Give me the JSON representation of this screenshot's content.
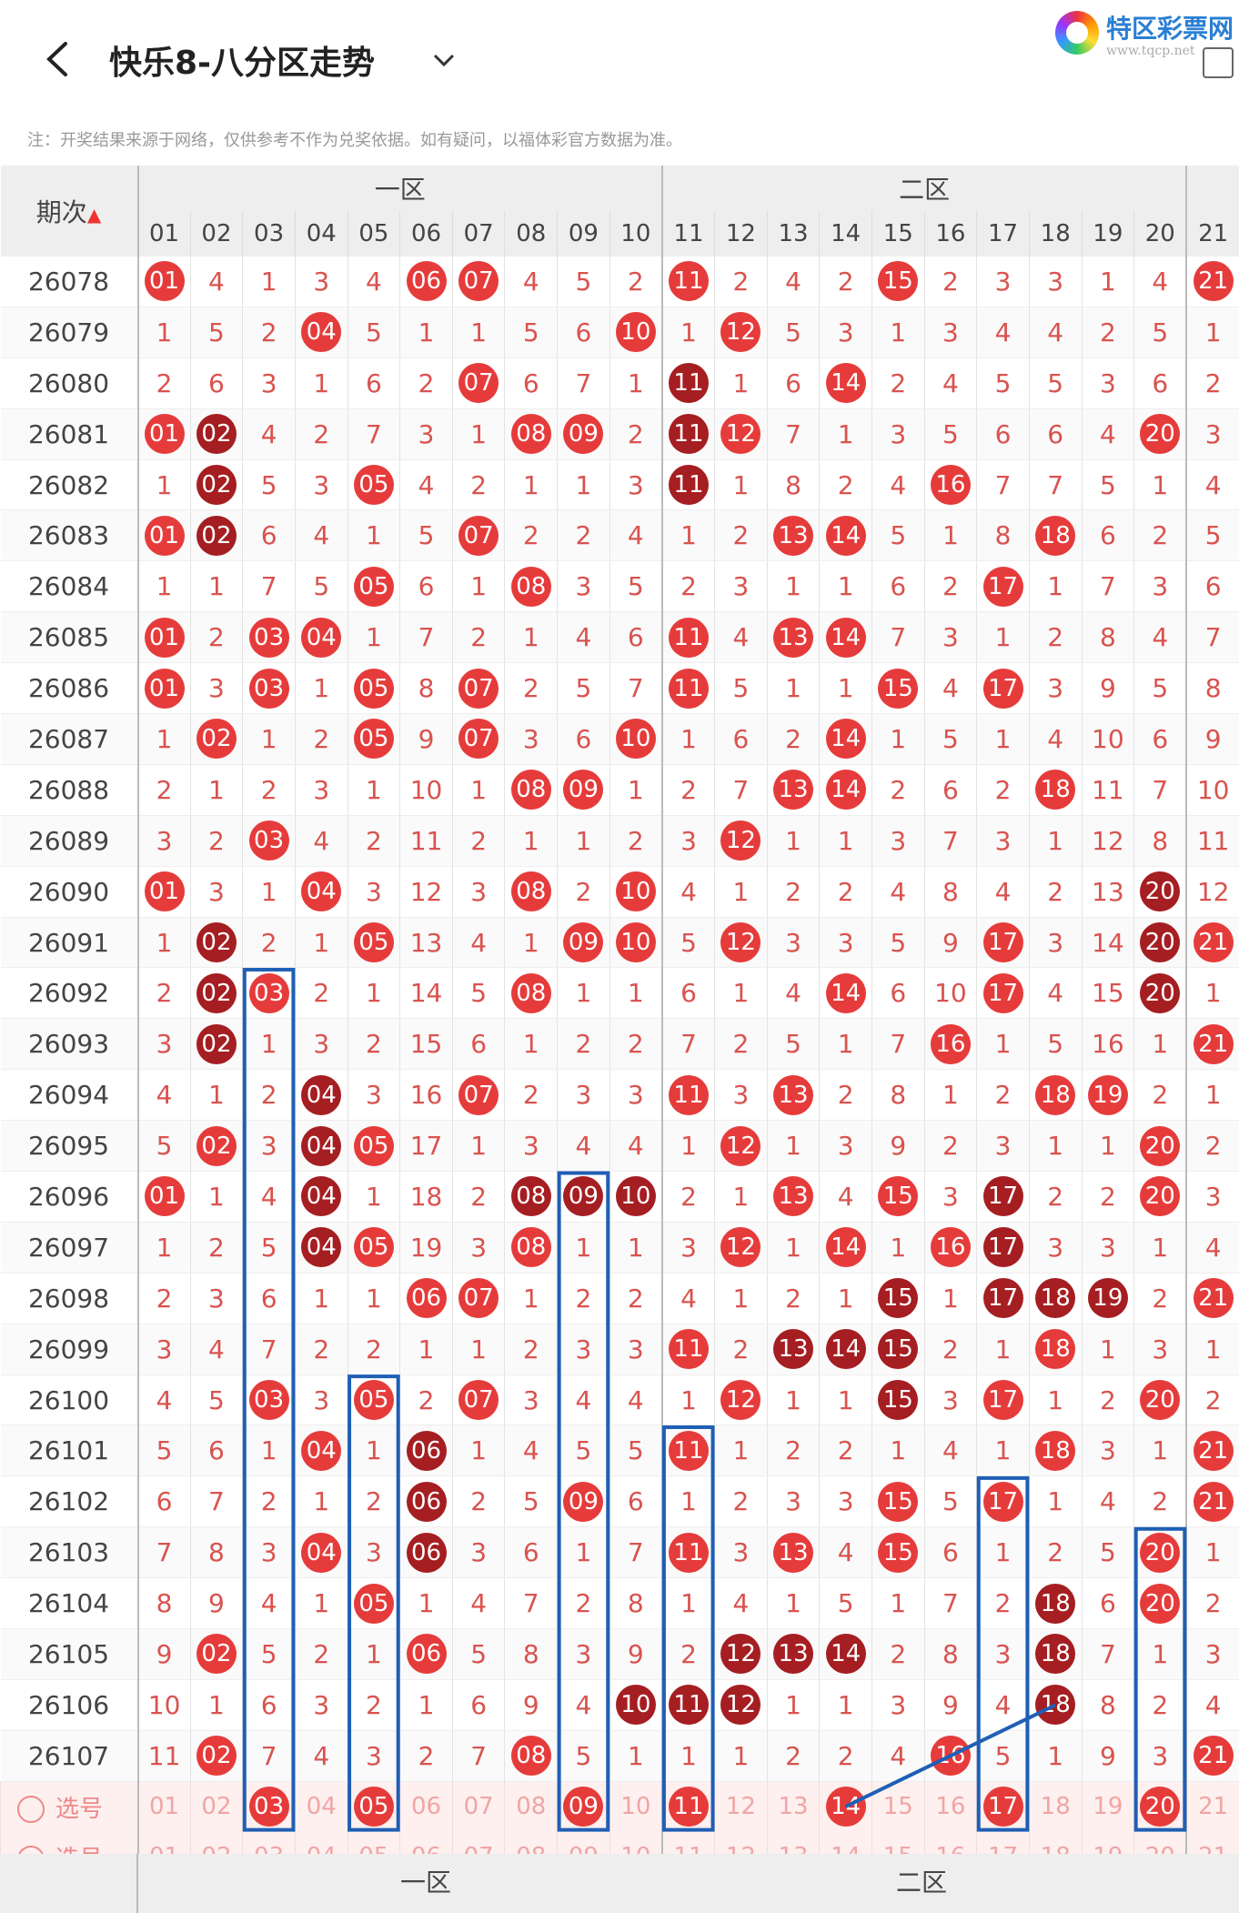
{
  "header": {
    "title": "快乐8-八分区走势",
    "logo_text": "特区彩票网",
    "logo_sub": "www.tqcp.net"
  },
  "note": "注：开奖结果来源于网络，仅供参考不作为兑奖依据。如有疑问，以福体彩官方数据为准。",
  "table": {
    "period_header": "期次",
    "sort_icon": "sort-icon",
    "zones": [
      "一区",
      "二区"
    ],
    "numbers": [
      "01",
      "02",
      "03",
      "04",
      "05",
      "06",
      "07",
      "08",
      "09",
      "10",
      "11",
      "12",
      "13",
      "14",
      "15",
      "16",
      "17",
      "18",
      "19",
      "20",
      "21"
    ],
    "rows": [
      {
        "period": "26078",
        "cells": [
          [
            "01",
            "r"
          ],
          "4",
          "1",
          "3",
          "4",
          [
            "06",
            "r"
          ],
          [
            "07",
            "r"
          ],
          "4",
          "5",
          "2",
          [
            "11",
            "r"
          ],
          "2",
          "4",
          "2",
          [
            "15",
            "r"
          ],
          "2",
          "3",
          "3",
          "1",
          "4",
          [
            "21",
            "r"
          ]
        ]
      },
      {
        "period": "26079",
        "cells": [
          "1",
          "5",
          "2",
          [
            "04",
            "r"
          ],
          "5",
          "1",
          "1",
          "5",
          "6",
          [
            "10",
            "r"
          ],
          "1",
          [
            "12",
            "r"
          ],
          "5",
          "3",
          "1",
          "3",
          "4",
          "4",
          "2",
          "5",
          "1"
        ]
      },
      {
        "period": "26080",
        "cells": [
          "2",
          "6",
          "3",
          "1",
          "6",
          "2",
          [
            "07",
            "r"
          ],
          "6",
          "7",
          "1",
          [
            "11",
            "d"
          ],
          "1",
          "6",
          [
            "14",
            "r"
          ],
          "2",
          "4",
          "5",
          "5",
          "3",
          "6",
          "2"
        ]
      },
      {
        "period": "26081",
        "cells": [
          [
            "01",
            "r"
          ],
          [
            "02",
            "d"
          ],
          "4",
          "2",
          "7",
          "3",
          "1",
          [
            "08",
            "r"
          ],
          [
            "09",
            "r"
          ],
          "2",
          [
            "11",
            "d"
          ],
          [
            "12",
            "r"
          ],
          "7",
          "1",
          "3",
          "5",
          "6",
          "6",
          "4",
          [
            "20",
            "r"
          ],
          "3"
        ]
      },
      {
        "period": "26082",
        "cells": [
          "1",
          [
            "02",
            "d"
          ],
          "5",
          "3",
          [
            "05",
            "r"
          ],
          "4",
          "2",
          "1",
          "1",
          "3",
          [
            "11",
            "d"
          ],
          "1",
          "8",
          "2",
          "4",
          [
            "16",
            "r"
          ],
          "7",
          "7",
          "5",
          "1",
          "4"
        ]
      },
      {
        "period": "26083",
        "cells": [
          [
            "01",
            "r"
          ],
          [
            "02",
            "d"
          ],
          "6",
          "4",
          "1",
          "5",
          [
            "07",
            "r"
          ],
          "2",
          "2",
          "4",
          "1",
          "2",
          [
            "13",
            "r"
          ],
          [
            "14",
            "r"
          ],
          "5",
          "1",
          "8",
          [
            "18",
            "r"
          ],
          "6",
          "2",
          "5"
        ]
      },
      {
        "period": "26084",
        "cells": [
          "1",
          "1",
          "7",
          "5",
          [
            "05",
            "r"
          ],
          "6",
          "1",
          [
            "08",
            "r"
          ],
          "3",
          "5",
          "2",
          "3",
          "1",
          "1",
          "6",
          "2",
          [
            "17",
            "r"
          ],
          "1",
          "7",
          "3",
          "6"
        ]
      },
      {
        "period": "26085",
        "cells": [
          [
            "01",
            "r"
          ],
          "2",
          [
            "03",
            "r"
          ],
          [
            "04",
            "r"
          ],
          "1",
          "7",
          "2",
          "1",
          "4",
          "6",
          [
            "11",
            "r"
          ],
          "4",
          [
            "13",
            "r"
          ],
          [
            "14",
            "r"
          ],
          "7",
          "3",
          "1",
          "2",
          "8",
          "4",
          "7"
        ]
      },
      {
        "period": "26086",
        "cells": [
          [
            "01",
            "r"
          ],
          "3",
          [
            "03",
            "r"
          ],
          "1",
          [
            "05",
            "r"
          ],
          "8",
          [
            "07",
            "r"
          ],
          "2",
          "5",
          "7",
          [
            "11",
            "r"
          ],
          "5",
          "1",
          "1",
          [
            "15",
            "r"
          ],
          "4",
          [
            "17",
            "r"
          ],
          "3",
          "9",
          "5",
          "8"
        ]
      },
      {
        "period": "26087",
        "cells": [
          "1",
          [
            "02",
            "r"
          ],
          "1",
          "2",
          [
            "05",
            "r"
          ],
          "9",
          [
            "07",
            "r"
          ],
          "3",
          "6",
          [
            "10",
            "r"
          ],
          "1",
          "6",
          "2",
          [
            "14",
            "r"
          ],
          "1",
          "5",
          "1",
          "4",
          "10",
          "6",
          "9"
        ]
      },
      {
        "period": "26088",
        "cells": [
          "2",
          "1",
          "2",
          "3",
          "1",
          "10",
          "1",
          [
            "08",
            "r"
          ],
          [
            "09",
            "r"
          ],
          "1",
          "2",
          "7",
          [
            "13",
            "r"
          ],
          [
            "14",
            "r"
          ],
          "2",
          "6",
          "2",
          [
            "18",
            "r"
          ],
          "11",
          "7",
          "10"
        ]
      },
      {
        "period": "26089",
        "cells": [
          "3",
          "2",
          [
            "03",
            "r"
          ],
          "4",
          "2",
          "11",
          "2",
          "1",
          "1",
          "2",
          "3",
          [
            "12",
            "r"
          ],
          "1",
          "1",
          "3",
          "7",
          "3",
          "1",
          "12",
          "8",
          "11"
        ]
      },
      {
        "period": "26090",
        "cells": [
          [
            "01",
            "r"
          ],
          "3",
          "1",
          [
            "04",
            "r"
          ],
          "3",
          "12",
          "3",
          [
            "08",
            "r"
          ],
          "2",
          [
            "10",
            "r"
          ],
          "4",
          "1",
          "2",
          "2",
          "4",
          "8",
          "4",
          "2",
          "13",
          [
            "20",
            "d"
          ],
          "12"
        ]
      },
      {
        "period": "26091",
        "cells": [
          "1",
          [
            "02",
            "d"
          ],
          "2",
          "1",
          [
            "05",
            "r"
          ],
          "13",
          "4",
          "1",
          [
            "09",
            "r"
          ],
          [
            "10",
            "r"
          ],
          "5",
          [
            "12",
            "r"
          ],
          "3",
          "3",
          "5",
          "9",
          [
            "17",
            "r"
          ],
          "3",
          "14",
          [
            "20",
            "d"
          ],
          [
            "21",
            "r"
          ]
        ]
      },
      {
        "period": "26092",
        "cells": [
          "2",
          [
            "02",
            "d"
          ],
          [
            "03",
            "r"
          ],
          "2",
          "1",
          "14",
          "5",
          [
            "08",
            "r"
          ],
          "1",
          "1",
          "6",
          "1",
          "4",
          [
            "14",
            "r"
          ],
          "6",
          "10",
          [
            "17",
            "r"
          ],
          "4",
          "15",
          [
            "20",
            "d"
          ],
          "1"
        ]
      },
      {
        "period": "26093",
        "cells": [
          "3",
          [
            "02",
            "d"
          ],
          "1",
          "3",
          "2",
          "15",
          "6",
          "1",
          "2",
          "2",
          "7",
          "2",
          "5",
          "1",
          "7",
          [
            "16",
            "r"
          ],
          "1",
          "5",
          "16",
          "1",
          [
            "21",
            "r"
          ]
        ]
      },
      {
        "period": "26094",
        "cells": [
          "4",
          "1",
          "2",
          [
            "04",
            "d"
          ],
          "3",
          "16",
          [
            "07",
            "r"
          ],
          "2",
          "3",
          "3",
          [
            "11",
            "r"
          ],
          "3",
          [
            "13",
            "r"
          ],
          "2",
          "8",
          "1",
          "2",
          [
            "18",
            "r"
          ],
          [
            "19",
            "r"
          ],
          "2",
          "1"
        ]
      },
      {
        "period": "26095",
        "cells": [
          "5",
          [
            "02",
            "r"
          ],
          "3",
          [
            "04",
            "d"
          ],
          [
            "05",
            "r"
          ],
          "17",
          "1",
          "3",
          "4",
          "4",
          "1",
          [
            "12",
            "r"
          ],
          "1",
          "3",
          "9",
          "2",
          "3",
          "1",
          "1",
          [
            "20",
            "r"
          ],
          "2"
        ]
      },
      {
        "period": "26096",
        "cells": [
          [
            "01",
            "r"
          ],
          "1",
          "4",
          [
            "04",
            "d"
          ],
          "1",
          "18",
          "2",
          [
            "08",
            "d"
          ],
          [
            "09",
            "d"
          ],
          [
            "10",
            "d"
          ],
          "2",
          "1",
          [
            "13",
            "r"
          ],
          "4",
          [
            "15",
            "r"
          ],
          "3",
          [
            "17",
            "d"
          ],
          "2",
          "2",
          [
            "20",
            "r"
          ],
          "3"
        ]
      },
      {
        "period": "26097",
        "cells": [
          "1",
          "2",
          "5",
          [
            "04",
            "d"
          ],
          [
            "05",
            "r"
          ],
          "19",
          "3",
          [
            "08",
            "r"
          ],
          "1",
          "1",
          "3",
          [
            "12",
            "r"
          ],
          "1",
          [
            "14",
            "r"
          ],
          "1",
          [
            "16",
            "r"
          ],
          [
            "17",
            "d"
          ],
          "3",
          "3",
          "1",
          "4"
        ]
      },
      {
        "period": "26098",
        "cells": [
          "2",
          "3",
          "6",
          "1",
          "1",
          [
            "06",
            "r"
          ],
          [
            "07",
            "r"
          ],
          "1",
          "2",
          "2",
          "4",
          "1",
          "2",
          "1",
          [
            "15",
            "d"
          ],
          "1",
          [
            "17",
            "d"
          ],
          [
            "18",
            "d"
          ],
          [
            "19",
            "d"
          ],
          "2",
          [
            "21",
            "r"
          ]
        ]
      },
      {
        "period": "26099",
        "cells": [
          "3",
          "4",
          "7",
          "2",
          "2",
          "1",
          "1",
          "2",
          "3",
          "3",
          [
            "11",
            "r"
          ],
          "2",
          [
            "13",
            "d"
          ],
          [
            "14",
            "d"
          ],
          [
            "15",
            "d"
          ],
          "2",
          "1",
          [
            "18",
            "r"
          ],
          "1",
          "3",
          "1"
        ]
      },
      {
        "period": "26100",
        "cells": [
          "4",
          "5",
          [
            "03",
            "r"
          ],
          "3",
          [
            "05",
            "r"
          ],
          "2",
          [
            "07",
            "r"
          ],
          "3",
          "4",
          "4",
          "1",
          [
            "12",
            "r"
          ],
          "1",
          "1",
          [
            "15",
            "d"
          ],
          "3",
          [
            "17",
            "r"
          ],
          "1",
          "2",
          [
            "20",
            "r"
          ],
          "2"
        ]
      },
      {
        "period": "26101",
        "cells": [
          "5",
          "6",
          "1",
          [
            "04",
            "r"
          ],
          "1",
          [
            "06",
            "d"
          ],
          "1",
          "4",
          "5",
          "5",
          [
            "11",
            "r"
          ],
          "1",
          "2",
          "2",
          "1",
          "4",
          "1",
          [
            "18",
            "r"
          ],
          "3",
          "1",
          [
            "21",
            "r"
          ]
        ]
      },
      {
        "period": "26102",
        "cells": [
          "6",
          "7",
          "2",
          "1",
          "2",
          [
            "06",
            "d"
          ],
          "2",
          "5",
          [
            "09",
            "r"
          ],
          "6",
          "1",
          "2",
          "3",
          "3",
          [
            "15",
            "r"
          ],
          "5",
          [
            "17",
            "r"
          ],
          "1",
          "4",
          "2",
          [
            "21",
            "r"
          ]
        ]
      },
      {
        "period": "26103",
        "cells": [
          "7",
          "8",
          "3",
          [
            "04",
            "r"
          ],
          "3",
          [
            "06",
            "d"
          ],
          "3",
          "6",
          "1",
          "7",
          [
            "11",
            "r"
          ],
          "3",
          [
            "13",
            "r"
          ],
          "4",
          [
            "15",
            "r"
          ],
          "6",
          "1",
          "2",
          "5",
          [
            "20",
            "r"
          ],
          "1"
        ]
      },
      {
        "period": "26104",
        "cells": [
          "8",
          "9",
          "4",
          "1",
          [
            "05",
            "r"
          ],
          "1",
          "4",
          "7",
          "2",
          "8",
          "1",
          "4",
          "1",
          "5",
          "1",
          "7",
          "2",
          [
            "18",
            "d"
          ],
          "6",
          [
            "20",
            "r"
          ],
          "2"
        ]
      },
      {
        "period": "26105",
        "cells": [
          "9",
          [
            "02",
            "r"
          ],
          "5",
          "2",
          "1",
          [
            "06",
            "r"
          ],
          "5",
          "8",
          "3",
          "9",
          "2",
          [
            "12",
            "d"
          ],
          [
            "13",
            "d"
          ],
          [
            "14",
            "d"
          ],
          "2",
          "8",
          "3",
          [
            "18",
            "d"
          ],
          "7",
          "1",
          "3"
        ]
      },
      {
        "period": "26106",
        "cells": [
          "10",
          "1",
          "6",
          "3",
          "2",
          "1",
          "6",
          "9",
          "4",
          [
            "10",
            "d"
          ],
          [
            "11",
            "d"
          ],
          [
            "12",
            "d"
          ],
          "1",
          "1",
          "3",
          "9",
          "4",
          [
            "18",
            "d"
          ],
          "8",
          "2",
          "4"
        ]
      },
      {
        "period": "26107",
        "cells": [
          "11",
          [
            "02",
            "r"
          ],
          "7",
          "4",
          "3",
          "2",
          "7",
          [
            "08",
            "r"
          ],
          "5",
          "1",
          "1",
          "1",
          "2",
          "2",
          "4",
          [
            "16",
            "r"
          ],
          "5",
          "1",
          "9",
          "3",
          [
            "21",
            "r"
          ]
        ]
      }
    ],
    "select_rows": [
      {
        "label": "选号",
        "selected": [
          "03",
          "05",
          "09",
          "11",
          "14",
          "17",
          "20"
        ]
      },
      {
        "label": "选号",
        "selected": []
      }
    ]
  },
  "footer_zones": [
    "一区",
    "二区"
  ]
}
